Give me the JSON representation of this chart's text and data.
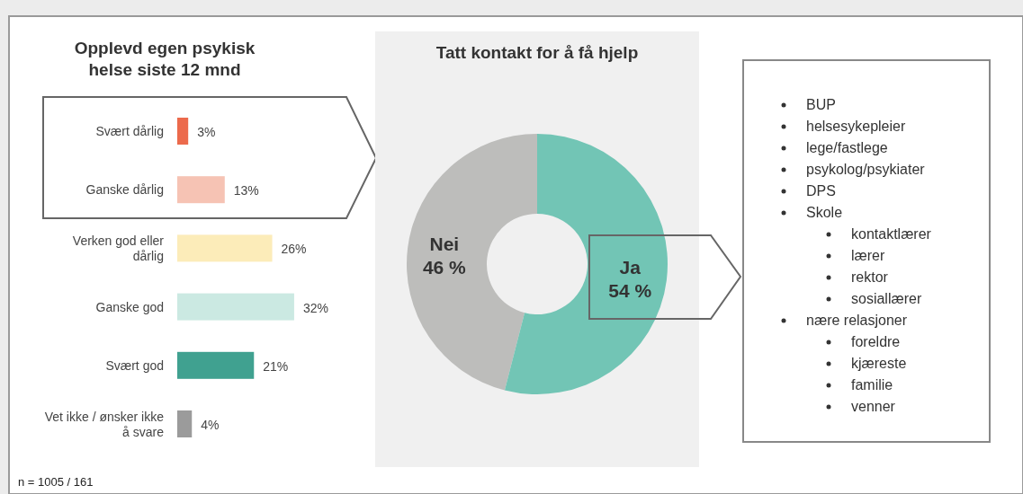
{
  "chart_data": [
    {
      "type": "bar",
      "orientation": "horizontal",
      "title": "Opplevd egen psykisk helse siste 12 mnd",
      "categories": [
        "Svært dårlig",
        "Ganske dårlig",
        "Verken god eller dårlig",
        "Ganske god",
        "Svært god",
        "Vet ikke / ønsker ikke å svare"
      ],
      "values": [
        3,
        13,
        26,
        32,
        21,
        4
      ],
      "colors": [
        "#ec6a4c",
        "#f6c3b4",
        "#fcecb9",
        "#cbe9e2",
        "#40a190",
        "#9b9b9b"
      ],
      "value_labels": [
        "3%",
        "13%",
        "26%",
        "32%",
        "21%",
        "4%"
      ],
      "annotations": [
        "n = 1005 / 161"
      ]
    },
    {
      "type": "donut",
      "title": "Tatt kontakt for å få hjelp",
      "categories": [
        "Nei",
        "Ja"
      ],
      "values": [
        46,
        54
      ],
      "colors": [
        "#bdbdbb",
        "#72c5b5"
      ],
      "value_labels": [
        "46 %",
        "54 %"
      ]
    },
    {
      "type": "other",
      "annotations": [
        "BUP",
        "helsesykepleier",
        "lege/fastlege",
        "psykolog/psykiater",
        "DPS",
        "Skole",
        "kontaktlærer",
        "lærer",
        "rektor",
        "sosiallærer",
        "nære relasjoner",
        "foreldre",
        "kjæreste",
        "familie",
        "venner"
      ]
    }
  ]
}
